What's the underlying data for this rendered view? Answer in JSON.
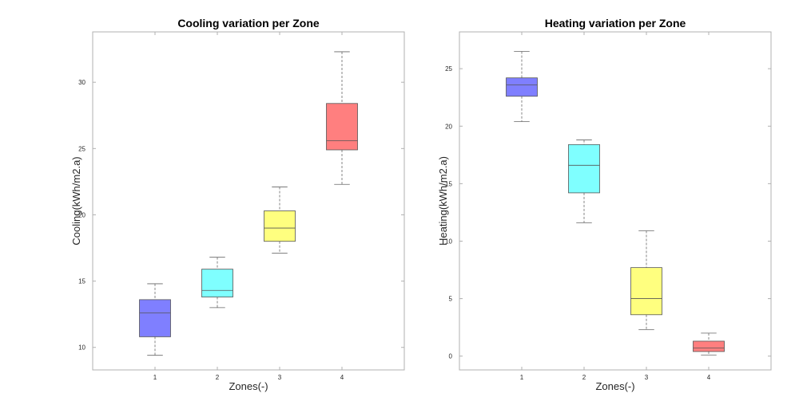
{
  "chart_data": [
    {
      "type": "box",
      "title": "Cooling variation per Zone",
      "xlabel": "Zones(-)",
      "ylabel": "Cooling(kWh/m2.a)",
      "categories": [
        "1",
        "2",
        "3",
        "4"
      ],
      "ylim": [
        8.3,
        33.8
      ],
      "yticks": [
        10,
        15,
        20,
        25,
        30
      ],
      "grid": false,
      "boxes": [
        {
          "min": 9.4,
          "q1": 10.8,
          "median": 12.6,
          "q3": 13.6,
          "max": 14.8,
          "color": "#7f7fff"
        },
        {
          "min": 13.0,
          "q1": 13.8,
          "median": 14.3,
          "q3": 15.9,
          "max": 16.8,
          "color": "#7fffff"
        },
        {
          "min": 17.1,
          "q1": 18.0,
          "median": 19.0,
          "q3": 20.3,
          "max": 22.1,
          "color": "#ffff7f"
        },
        {
          "min": 22.3,
          "q1": 24.9,
          "median": 25.6,
          "q3": 28.4,
          "max": 32.3,
          "color": "#ff7f7f"
        }
      ]
    },
    {
      "type": "box",
      "title": "Heating variation per Zone",
      "xlabel": "Zones(-)",
      "ylabel": "Heating(kWh/m2.a)",
      "categories": [
        "1",
        "2",
        "3",
        "4"
      ],
      "ylim": [
        -1.2,
        28.2
      ],
      "yticks": [
        0,
        5,
        10,
        15,
        20,
        25
      ],
      "grid": false,
      "boxes": [
        {
          "min": 20.4,
          "q1": 22.6,
          "median": 23.6,
          "q3": 24.2,
          "max": 26.5,
          "color": "#7f7fff"
        },
        {
          "min": 11.6,
          "q1": 14.2,
          "median": 16.6,
          "q3": 18.4,
          "max": 18.8,
          "color": "#7fffff"
        },
        {
          "min": 2.3,
          "q1": 3.6,
          "median": 5.0,
          "q3": 7.7,
          "max": 10.9,
          "color": "#ffff7f"
        },
        {
          "min": 0.1,
          "q1": 0.4,
          "median": 0.7,
          "q3": 1.3,
          "max": 2.0,
          "color": "#ff7f7f"
        }
      ]
    }
  ]
}
